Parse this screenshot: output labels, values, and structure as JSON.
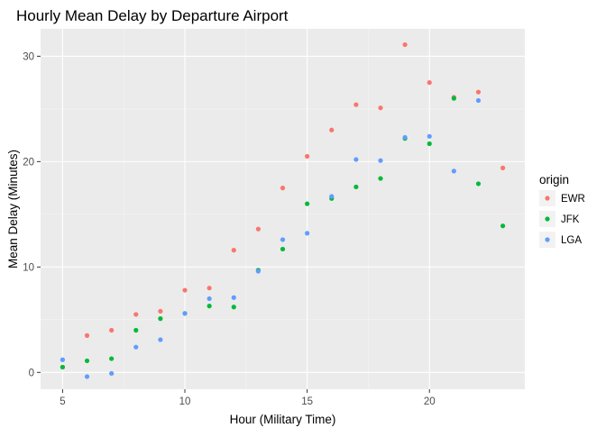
{
  "chart_data": {
    "type": "scatter",
    "title": "Hourly Mean Delay by Departure Airport",
    "xlabel": "Hour (Military Time)",
    "ylabel": "Mean Delay (Minutes)",
    "xlim": [
      4.1,
      23.9
    ],
    "ylim": [
      -1.6,
      32.6
    ],
    "x_ticks": [
      5,
      10,
      15,
      20
    ],
    "y_ticks": [
      0,
      10,
      20,
      30
    ],
    "x_tick_labels": [
      "5",
      "10",
      "15",
      "20"
    ],
    "y_tick_labels": [
      "0",
      "10",
      "20",
      "30"
    ],
    "grid": true,
    "legend": {
      "title": "origin",
      "placement": "right"
    },
    "colors": {
      "panel_background": "#EBEBEB",
      "grid_major": "#FFFFFF",
      "grid_minor": "#F5F5F5"
    },
    "series": [
      {
        "name": "EWR",
        "color": "#F8766D",
        "x": [
          5,
          6,
          7,
          8,
          9,
          10,
          11,
          12,
          13,
          14,
          15,
          16,
          17,
          18,
          19,
          20,
          21,
          22,
          23
        ],
        "y": [
          0.5,
          3.5,
          4.0,
          5.5,
          5.8,
          7.8,
          8.0,
          11.6,
          13.6,
          17.5,
          20.5,
          23.0,
          25.4,
          25.1,
          31.1,
          27.5,
          26.1,
          26.6,
          19.4
        ]
      },
      {
        "name": "JFK",
        "color": "#00BA38",
        "x": [
          5,
          6,
          7,
          8,
          9,
          10,
          11,
          12,
          13,
          14,
          15,
          16,
          17,
          18,
          19,
          20,
          21,
          22,
          23
        ],
        "y": [
          0.5,
          1.1,
          1.3,
          4.0,
          5.1,
          5.6,
          6.3,
          6.2,
          9.7,
          11.7,
          16.0,
          16.5,
          17.6,
          18.4,
          22.2,
          21.7,
          26.0,
          17.9,
          13.9
        ]
      },
      {
        "name": "LGA",
        "color": "#619CFF",
        "x": [
          5,
          6,
          7,
          8,
          9,
          10,
          11,
          12,
          13,
          14,
          15,
          16,
          17,
          18,
          19,
          20,
          21,
          22
        ],
        "y": [
          1.2,
          -0.4,
          -0.1,
          2.4,
          3.1,
          5.6,
          7.0,
          7.1,
          9.6,
          12.6,
          13.2,
          16.7,
          20.2,
          20.1,
          22.3,
          22.4,
          19.1,
          25.8
        ]
      }
    ]
  }
}
